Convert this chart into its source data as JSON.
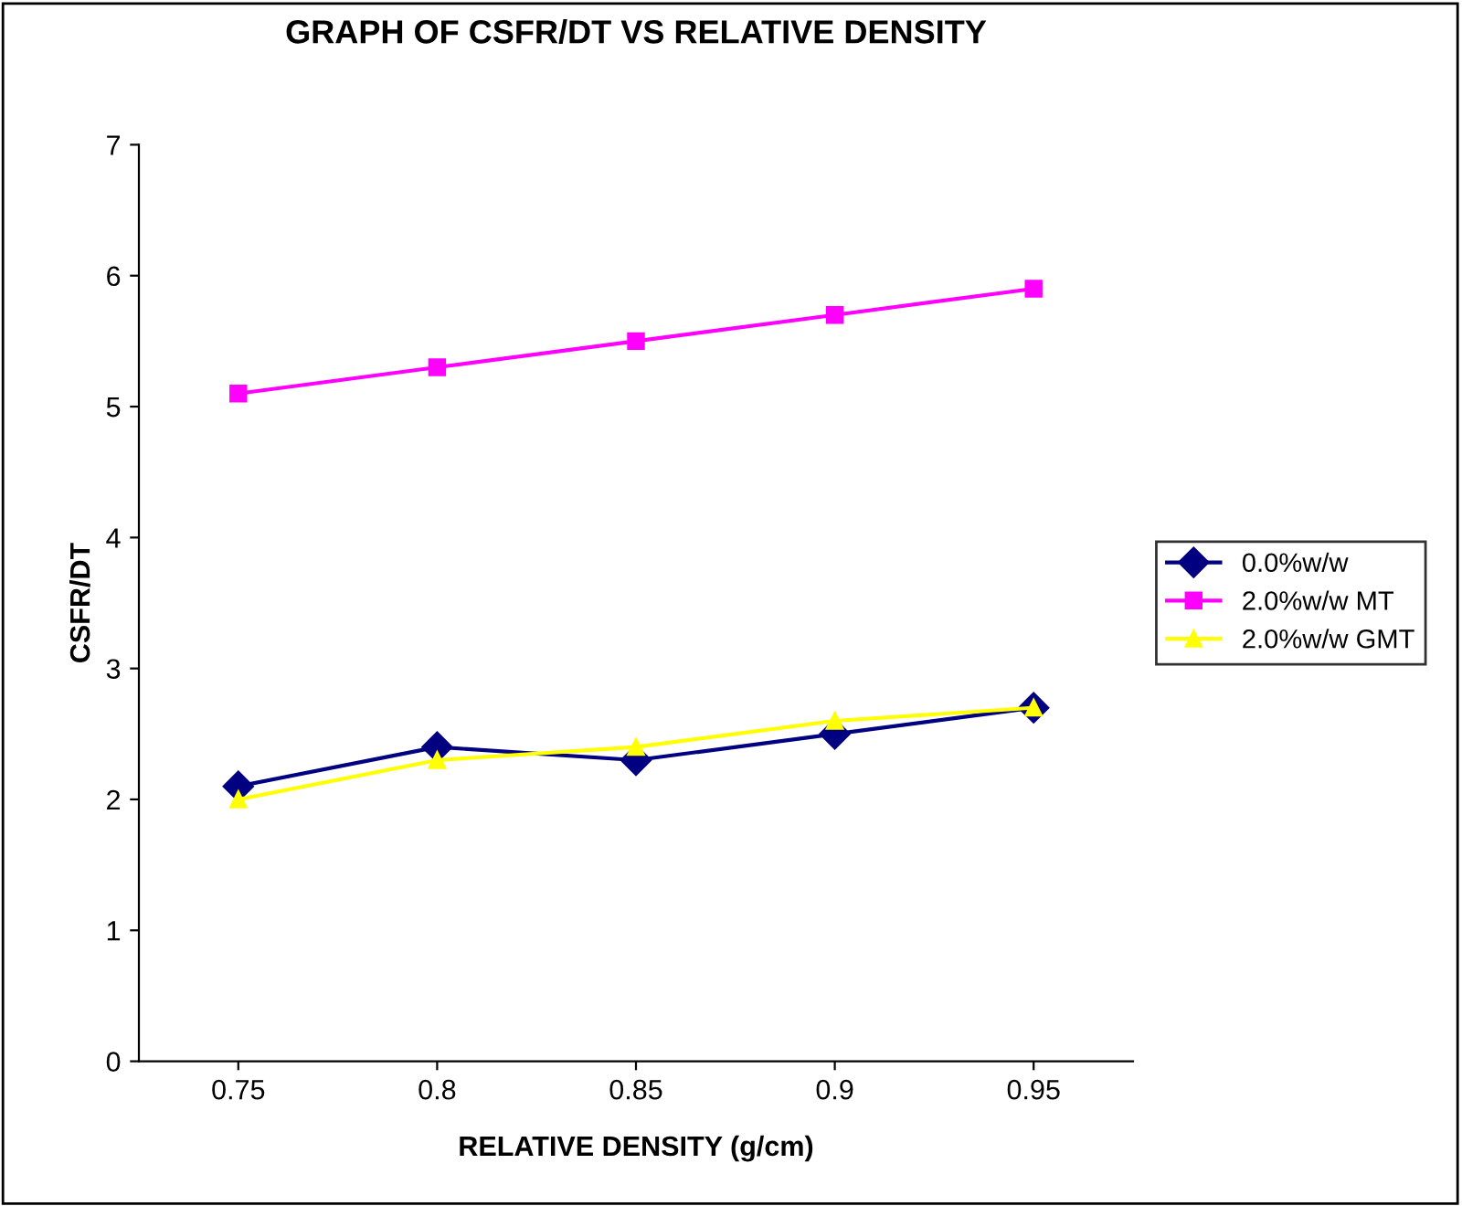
{
  "chart_data": {
    "type": "line",
    "title": "GRAPH OF CSFR/DT VS RELATIVE DENSITY",
    "xlabel": "RELATIVE DENSITY (g/cm)",
    "ylabel": "CSFR/DT",
    "categories": [
      "0.75",
      "0.8",
      "0.85",
      "0.9",
      "0.95"
    ],
    "series": [
      {
        "name": "0.0%w/w",
        "color": "#000080",
        "marker": "diamond",
        "values": [
          2.1,
          2.4,
          2.3,
          2.5,
          2.7
        ]
      },
      {
        "name": "2.0%w/w MT",
        "color": "#ff00ff",
        "marker": "square",
        "values": [
          5.1,
          5.3,
          5.5,
          5.7,
          5.9
        ]
      },
      {
        "name": "2.0%w/w GMT",
        "color": "#ffff00",
        "marker": "triangle",
        "values": [
          2.0,
          2.3,
          2.4,
          2.6,
          2.7
        ]
      }
    ],
    "ylim": [
      0,
      7
    ],
    "yticks": [
      0,
      1,
      2,
      3,
      4,
      5,
      6,
      7
    ],
    "grid": false,
    "legend": "right",
    "line_style": "solid"
  }
}
